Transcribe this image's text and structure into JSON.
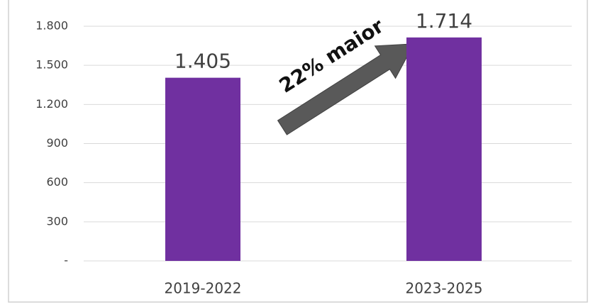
{
  "chart_data": {
    "type": "bar",
    "categories": [
      "2019-2022",
      "2023-2025"
    ],
    "values": [
      1405,
      1714
    ],
    "value_labels": [
      "1.405",
      "1.714"
    ],
    "color": "#7030a0",
    "ylim": [
      0,
      1800
    ],
    "yticks": [
      {
        "value": 0,
        "label": "-"
      },
      300,
      600,
      900,
      {
        "value": 1200,
        "label": "1.200"
      },
      {
        "value": 1500,
        "label": "1.500"
      },
      {
        "value": 1800,
        "label": "1.800"
      }
    ],
    "grid": true,
    "annotation": "22% maior"
  }
}
